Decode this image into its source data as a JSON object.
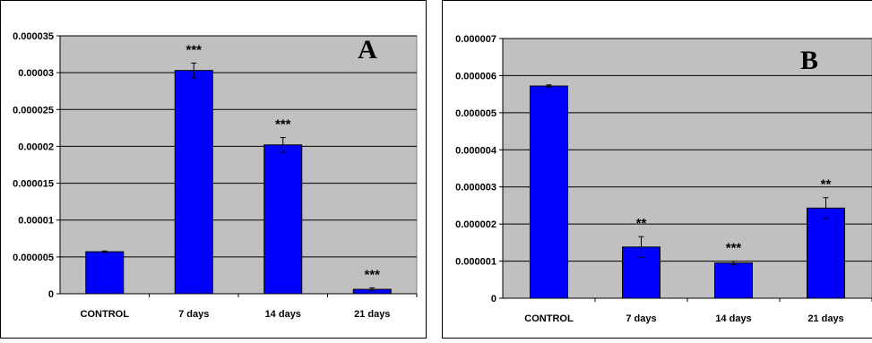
{
  "chart_data": [
    {
      "type": "bar",
      "title": "",
      "xlabel": "",
      "ylabel": "",
      "panel_label": "A",
      "categories": [
        "CONTROL",
        "7 days",
        "14 days",
        "21 days"
      ],
      "values": [
        5.7e-06,
        3.03e-05,
        2.02e-05,
        6e-07
      ],
      "errors": [
        1e-07,
        1e-06,
        1e-06,
        2e-07
      ],
      "significance": [
        "",
        "***",
        "***",
        "***"
      ],
      "yticks": [
        "0",
        "0.000005",
        "0.00001",
        "0.000015",
        "0.00002",
        "0.000025",
        "0.00003",
        "0.000035"
      ],
      "ylim": [
        0,
        3.5e-05
      ],
      "grid": true,
      "bar_color": "#0000ff",
      "plot_background": "#c0c0c0"
    },
    {
      "type": "bar",
      "title": "",
      "xlabel": "",
      "ylabel": "",
      "panel_label": "B",
      "categories": [
        "CONTROL",
        "7 days",
        "14 days",
        "21 days"
      ],
      "values": [
        5.72e-06,
        1.38e-06,
        9.5e-07,
        2.43e-06
      ],
      "errors": [
        3e-08,
        2.8e-07,
        5e-08,
        2.8e-07
      ],
      "significance": [
        "",
        "**",
        "***",
        "**"
      ],
      "yticks": [
        "0",
        "0.000001",
        "0.000002",
        "0.000003",
        "0.000004",
        "0.000005",
        "0.000006",
        "0.000007"
      ],
      "ylim": [
        0,
        7e-06
      ],
      "grid": true,
      "bar_color": "#0000ff",
      "plot_background": "#c0c0c0"
    }
  ]
}
